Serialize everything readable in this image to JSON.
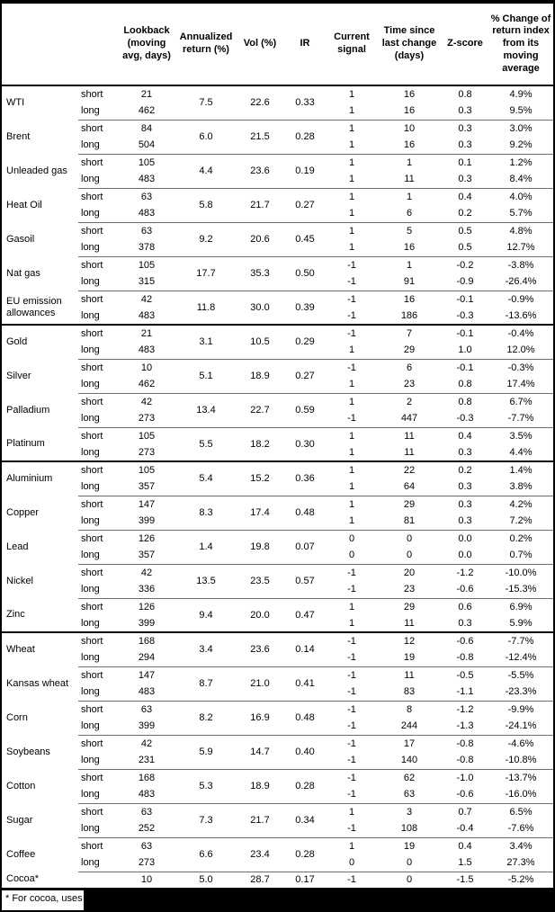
{
  "table": {
    "header": {
      "lookback": "Lookback\n(moving\navg, days)",
      "annualized": "Annualized\nreturn (%)",
      "vol": "Vol (%)",
      "ir": "IR",
      "signal": "Current\nsignal",
      "time": "Time since\nlast change\n(days)",
      "zscore": "Z-score",
      "pct_change": "% Change of\nreturn index\nfrom its\nmoving\naverage"
    },
    "commodities": [
      {
        "name": "WTI",
        "section_start": false,
        "annualized": "7.5",
        "vol": "22.6",
        "ir": "0.33",
        "rows": [
          {
            "leg": "short",
            "lookback": "21",
            "signal": "1",
            "days": "16",
            "z": "0.8",
            "pct": "4.9%"
          },
          {
            "leg": "long",
            "lookback": "462",
            "signal": "1",
            "days": "16",
            "z": "0.3",
            "pct": "9.5%"
          }
        ]
      },
      {
        "name": "Brent",
        "section_start": false,
        "annualized": "6.0",
        "vol": "21.5",
        "ir": "0.28",
        "rows": [
          {
            "leg": "short",
            "lookback": "84",
            "signal": "1",
            "days": "10",
            "z": "0.3",
            "pct": "3.0%"
          },
          {
            "leg": "long",
            "lookback": "504",
            "signal": "1",
            "days": "16",
            "z": "0.3",
            "pct": "9.2%"
          }
        ]
      },
      {
        "name": "Unleaded gas",
        "section_start": false,
        "annualized": "4.4",
        "vol": "23.6",
        "ir": "0.19",
        "rows": [
          {
            "leg": "short",
            "lookback": "105",
            "signal": "1",
            "days": "1",
            "z": "0.1",
            "pct": "1.2%"
          },
          {
            "leg": "long",
            "lookback": "483",
            "signal": "1",
            "days": "11",
            "z": "0.3",
            "pct": "8.4%"
          }
        ]
      },
      {
        "name": "Heat Oil",
        "section_start": false,
        "annualized": "5.8",
        "vol": "21.7",
        "ir": "0.27",
        "rows": [
          {
            "leg": "short",
            "lookback": "63",
            "signal": "1",
            "days": "1",
            "z": "0.4",
            "pct": "4.0%"
          },
          {
            "leg": "long",
            "lookback": "483",
            "signal": "1",
            "days": "6",
            "z": "0.2",
            "pct": "5.7%"
          }
        ]
      },
      {
        "name": "Gasoil",
        "section_start": false,
        "annualized": "9.2",
        "vol": "20.6",
        "ir": "0.45",
        "rows": [
          {
            "leg": "short",
            "lookback": "63",
            "signal": "1",
            "days": "5",
            "z": "0.5",
            "pct": "4.8%"
          },
          {
            "leg": "long",
            "lookback": "378",
            "signal": "1",
            "days": "16",
            "z": "0.5",
            "pct": "12.7%"
          }
        ]
      },
      {
        "name": "Nat gas",
        "section_start": false,
        "annualized": "17.7",
        "vol": "35.3",
        "ir": "0.50",
        "rows": [
          {
            "leg": "short",
            "lookback": "105",
            "signal": "-1",
            "days": "1",
            "z": "-0.2",
            "pct": "-3.8%"
          },
          {
            "leg": "long",
            "lookback": "315",
            "signal": "-1",
            "days": "91",
            "z": "-0.9",
            "pct": "-26.4%"
          }
        ]
      },
      {
        "name": "EU emission allowances",
        "section_start": false,
        "annualized": "11.8",
        "vol": "30.0",
        "ir": "0.39",
        "rows": [
          {
            "leg": "short",
            "lookback": "42",
            "signal": "-1",
            "days": "16",
            "z": "-0.1",
            "pct": "-0.9%"
          },
          {
            "leg": "long",
            "lookback": "483",
            "signal": "-1",
            "days": "186",
            "z": "-0.3",
            "pct": "-13.6%"
          }
        ]
      },
      {
        "name": "Gold",
        "section_start": true,
        "annualized": "3.1",
        "vol": "10.5",
        "ir": "0.29",
        "rows": [
          {
            "leg": "short",
            "lookback": "21",
            "signal": "-1",
            "days": "7",
            "z": "-0.1",
            "pct": "-0.4%"
          },
          {
            "leg": "long",
            "lookback": "483",
            "signal": "1",
            "days": "29",
            "z": "1.0",
            "pct": "12.0%"
          }
        ]
      },
      {
        "name": "Silver",
        "section_start": false,
        "annualized": "5.1",
        "vol": "18.9",
        "ir": "0.27",
        "rows": [
          {
            "leg": "short",
            "lookback": "10",
            "signal": "-1",
            "days": "6",
            "z": "-0.1",
            "pct": "-0.3%"
          },
          {
            "leg": "long",
            "lookback": "462",
            "signal": "1",
            "days": "23",
            "z": "0.8",
            "pct": "17.4%"
          }
        ]
      },
      {
        "name": "Palladium",
        "section_start": false,
        "annualized": "13.4",
        "vol": "22.7",
        "ir": "0.59",
        "rows": [
          {
            "leg": "short",
            "lookback": "42",
            "signal": "1",
            "days": "2",
            "z": "0.8",
            "pct": "6.7%"
          },
          {
            "leg": "long",
            "lookback": "273",
            "signal": "-1",
            "days": "447",
            "z": "-0.3",
            "pct": "-7.7%"
          }
        ]
      },
      {
        "name": "Platinum",
        "section_start": false,
        "annualized": "5.5",
        "vol": "18.2",
        "ir": "0.30",
        "rows": [
          {
            "leg": "short",
            "lookback": "105",
            "signal": "1",
            "days": "11",
            "z": "0.4",
            "pct": "3.5%"
          },
          {
            "leg": "long",
            "lookback": "273",
            "signal": "1",
            "days": "11",
            "z": "0.3",
            "pct": "4.4%"
          }
        ]
      },
      {
        "name": "Aluminium",
        "section_start": true,
        "annualized": "5.4",
        "vol": "15.2",
        "ir": "0.36",
        "rows": [
          {
            "leg": "short",
            "lookback": "105",
            "signal": "1",
            "days": "22",
            "z": "0.2",
            "pct": "1.4%"
          },
          {
            "leg": "long",
            "lookback": "357",
            "signal": "1",
            "days": "64",
            "z": "0.3",
            "pct": "3.8%"
          }
        ]
      },
      {
        "name": "Copper",
        "section_start": false,
        "annualized": "8.3",
        "vol": "17.4",
        "ir": "0.48",
        "rows": [
          {
            "leg": "short",
            "lookback": "147",
            "signal": "1",
            "days": "29",
            "z": "0.3",
            "pct": "4.2%"
          },
          {
            "leg": "long",
            "lookback": "399",
            "signal": "1",
            "days": "81",
            "z": "0.3",
            "pct": "7.2%"
          }
        ]
      },
      {
        "name": "Lead",
        "section_start": false,
        "annualized": "1.4",
        "vol": "19.8",
        "ir": "0.07",
        "rows": [
          {
            "leg": "short",
            "lookback": "126",
            "signal": "0",
            "days": "0",
            "z": "0.0",
            "pct": "0.2%"
          },
          {
            "leg": "long",
            "lookback": "357",
            "signal": "0",
            "days": "0",
            "z": "0.0",
            "pct": "0.7%"
          }
        ]
      },
      {
        "name": "Nickel",
        "section_start": false,
        "annualized": "13.5",
        "vol": "23.5",
        "ir": "0.57",
        "rows": [
          {
            "leg": "short",
            "lookback": "42",
            "signal": "-1",
            "days": "20",
            "z": "-1.2",
            "pct": "-10.0%"
          },
          {
            "leg": "long",
            "lookback": "336",
            "signal": "-1",
            "days": "23",
            "z": "-0.6",
            "pct": "-15.3%"
          }
        ]
      },
      {
        "name": "Zinc",
        "section_start": false,
        "annualized": "9.4",
        "vol": "20.0",
        "ir": "0.47",
        "rows": [
          {
            "leg": "short",
            "lookback": "126",
            "signal": "1",
            "days": "29",
            "z": "0.6",
            "pct": "6.9%"
          },
          {
            "leg": "long",
            "lookback": "399",
            "signal": "1",
            "days": "11",
            "z": "0.3",
            "pct": "5.9%"
          }
        ]
      },
      {
        "name": "Wheat",
        "section_start": true,
        "annualized": "3.4",
        "vol": "23.6",
        "ir": "0.14",
        "rows": [
          {
            "leg": "short",
            "lookback": "168",
            "signal": "-1",
            "days": "12",
            "z": "-0.6",
            "pct": "-7.7%"
          },
          {
            "leg": "long",
            "lookback": "294",
            "signal": "-1",
            "days": "19",
            "z": "-0.8",
            "pct": "-12.4%"
          }
        ]
      },
      {
        "name": "Kansas wheat",
        "section_start": false,
        "annualized": "8.7",
        "vol": "21.0",
        "ir": "0.41",
        "rows": [
          {
            "leg": "short",
            "lookback": "147",
            "signal": "-1",
            "days": "11",
            "z": "-0.5",
            "pct": "-5.5%"
          },
          {
            "leg": "long",
            "lookback": "483",
            "signal": "-1",
            "days": "83",
            "z": "-1.1",
            "pct": "-23.3%"
          }
        ]
      },
      {
        "name": "Corn",
        "section_start": false,
        "annualized": "8.2",
        "vol": "16.9",
        "ir": "0.48",
        "rows": [
          {
            "leg": "short",
            "lookback": "63",
            "signal": "-1",
            "days": "8",
            "z": "-1.2",
            "pct": "-9.9%"
          },
          {
            "leg": "long",
            "lookback": "399",
            "signal": "-1",
            "days": "244",
            "z": "-1.3",
            "pct": "-24.1%"
          }
        ]
      },
      {
        "name": "Soybeans",
        "section_start": false,
        "annualized": "5.9",
        "vol": "14.7",
        "ir": "0.40",
        "rows": [
          {
            "leg": "short",
            "lookback": "42",
            "signal": "-1",
            "days": "17",
            "z": "-0.8",
            "pct": "-4.6%"
          },
          {
            "leg": "long",
            "lookback": "231",
            "signal": "-1",
            "days": "140",
            "z": "-0.8",
            "pct": "-10.8%"
          }
        ]
      },
      {
        "name": "Cotton",
        "section_start": false,
        "annualized": "5.3",
        "vol": "18.9",
        "ir": "0.28",
        "rows": [
          {
            "leg": "short",
            "lookback": "168",
            "signal": "-1",
            "days": "62",
            "z": "-1.0",
            "pct": "-13.7%"
          },
          {
            "leg": "long",
            "lookback": "483",
            "signal": "-1",
            "days": "63",
            "z": "-0.6",
            "pct": "-16.0%"
          }
        ]
      },
      {
        "name": "Sugar",
        "section_start": false,
        "annualized": "7.3",
        "vol": "21.7",
        "ir": "0.34",
        "rows": [
          {
            "leg": "short",
            "lookback": "63",
            "signal": "1",
            "days": "3",
            "z": "0.7",
            "pct": "6.5%"
          },
          {
            "leg": "long",
            "lookback": "252",
            "signal": "-1",
            "days": "108",
            "z": "-0.4",
            "pct": "-7.6%"
          }
        ]
      },
      {
        "name": "Coffee",
        "section_start": false,
        "annualized": "6.6",
        "vol": "23.4",
        "ir": "0.28",
        "rows": [
          {
            "leg": "short",
            "lookback": "63",
            "signal": "1",
            "days": "19",
            "z": "0.4",
            "pct": "3.4%"
          },
          {
            "leg": "long",
            "lookback": "273",
            "signal": "0",
            "days": "0",
            "z": "1.5",
            "pct": "27.3%"
          }
        ]
      },
      {
        "name": "Cocoa*",
        "section_start": false,
        "annualized": "5.0",
        "vol": "28.7",
        "ir": "0.17",
        "rows": [
          {
            "leg": "",
            "lookback": "10",
            "signal": "-1",
            "days": "0",
            "z": "-1.5",
            "pct": "-5.2%"
          }
        ]
      }
    ]
  },
  "footnote": {
    "text": "* For cocoa, uses"
  }
}
